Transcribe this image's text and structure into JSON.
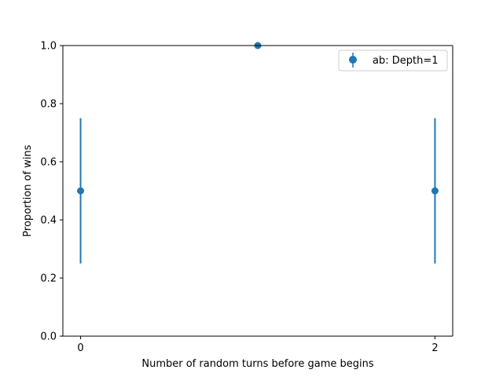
{
  "chart_data": {
    "type": "scatter",
    "title": "",
    "xlabel": "Number of random turns before game begins",
    "ylabel": "Proportion of wins",
    "xlim": [
      -0.1,
      2.1
    ],
    "ylim": [
      0.0,
      1.0
    ],
    "x_ticks": [
      0,
      2
    ],
    "x_tick_labels": [
      "0",
      "2"
    ],
    "y_ticks": [
      0.0,
      0.2,
      0.4,
      0.6,
      0.8,
      1.0
    ],
    "y_tick_labels": [
      "0.0",
      "0.2",
      "0.4",
      "0.6",
      "0.8",
      "1.0"
    ],
    "grid": false,
    "legend": {
      "position": "upper right"
    },
    "series": [
      {
        "name": "ab: Depth=1",
        "color": "#1f77b4",
        "x": [
          0,
          1,
          2
        ],
        "y": [
          0.5,
          1.0,
          0.5
        ],
        "yerr": [
          0.25,
          0.0,
          0.25
        ]
      }
    ]
  }
}
